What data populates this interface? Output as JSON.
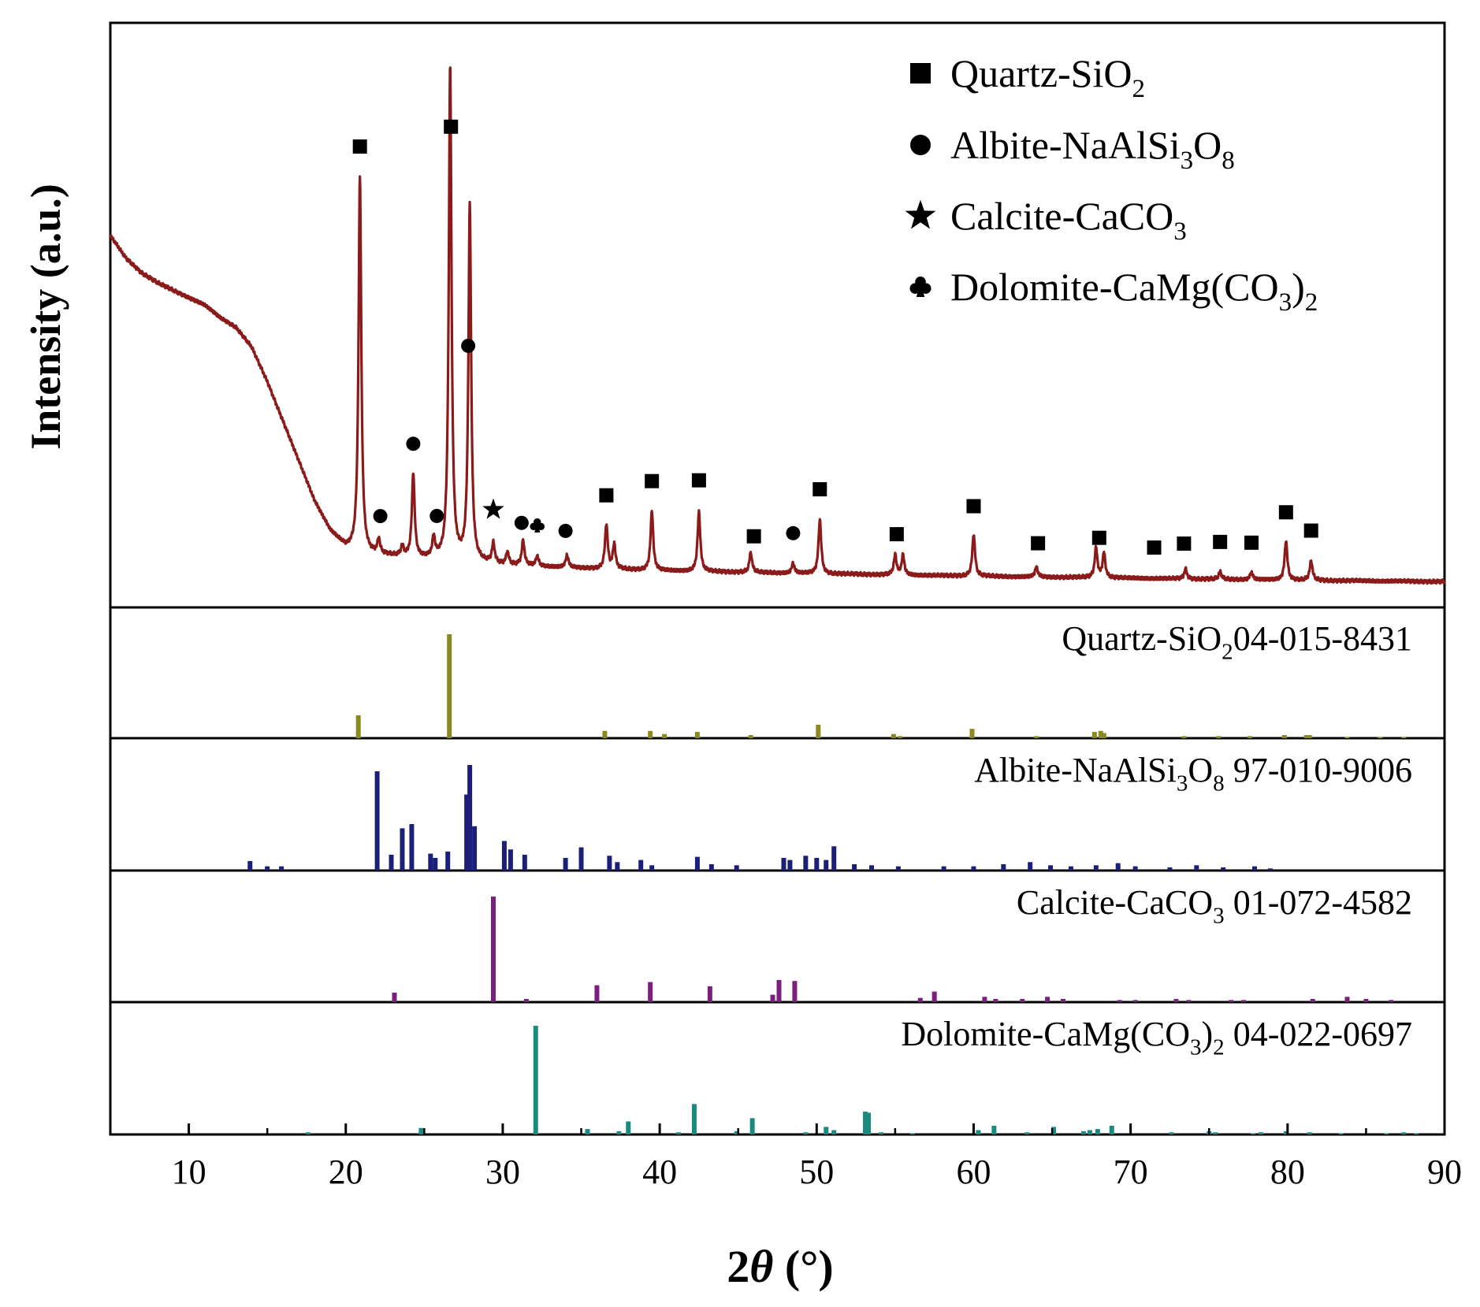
{
  "chart_data": {
    "type": "line",
    "xlabel": "2θ (°)",
    "ylabel": "Intensity (a.u.)",
    "xlim": [
      5,
      90
    ],
    "x_ticks": [
      10,
      20,
      30,
      40,
      50,
      60,
      70,
      80,
      90
    ],
    "grid": false,
    "legend_position": "top-right",
    "colors": {
      "xrd_pattern": "#8b1a1a",
      "quartz_ref": "#8a8a1e",
      "albite_ref": "#1c1f7a",
      "calcite_ref": "#7a1f7f",
      "dolomite_ref": "#1a8a80"
    },
    "legend": [
      {
        "phase": "quartz",
        "marker": "square",
        "symbol": "■",
        "prefix": "Quartz-SiO",
        "subs": [
          [
            "2",
            ""
          ]
        ]
      },
      {
        "phase": "albite",
        "marker": "circle",
        "symbol": "●",
        "prefix": "Albite-NaAlSi",
        "subs": [
          [
            "3",
            "O"
          ],
          [
            "8",
            ""
          ]
        ]
      },
      {
        "phase": "calcite",
        "marker": "star",
        "symbol": "★",
        "prefix": "Calcite-CaCO",
        "subs": [
          [
            "3",
            ""
          ]
        ]
      },
      {
        "phase": "dolomite",
        "marker": "club",
        "symbol": "♣",
        "prefix": "Dolomite-CaMg(CO",
        "subs": [
          [
            "3",
            ")"
          ],
          [
            "2",
            ""
          ]
        ]
      }
    ],
    "xrd_pattern": {
      "background": [
        [
          5,
          0.705
        ],
        [
          6,
          0.66
        ],
        [
          7,
          0.63
        ],
        [
          8,
          0.61
        ],
        [
          9,
          0.595
        ],
        [
          10,
          0.58
        ],
        [
          11,
          0.565
        ],
        [
          12,
          0.54
        ],
        [
          13,
          0.52
        ],
        [
          14,
          0.48
        ],
        [
          15,
          0.41
        ],
        [
          16,
          0.33
        ],
        [
          17,
          0.25
        ],
        [
          18,
          0.17
        ],
        [
          19,
          0.11
        ],
        [
          20,
          0.075
        ],
        [
          21,
          0.065
        ],
        [
          22,
          0.06
        ],
        [
          24,
          0.055
        ],
        [
          26,
          0.05
        ],
        [
          28,
          0.045
        ],
        [
          30,
          0.04
        ],
        [
          35,
          0.033
        ],
        [
          40,
          0.028
        ],
        [
          50,
          0.022
        ],
        [
          60,
          0.017
        ],
        [
          70,
          0.013
        ],
        [
          80,
          0.009
        ],
        [
          90,
          0.006
        ]
      ],
      "peaks": [
        {
          "two_theta": 20.9,
          "intensity": 0.76,
          "phase": "quartz"
        },
        {
          "two_theta": 22.1,
          "intensity": 0.03,
          "phase": "albite"
        },
        {
          "two_theta": 23.6,
          "intensity": 0.02,
          "phase": "albite"
        },
        {
          "two_theta": 24.3,
          "intensity": 0.17,
          "phase": "albite"
        },
        {
          "two_theta": 25.6,
          "intensity": 0.04,
          "phase": "albite"
        },
        {
          "two_theta": 26.65,
          "intensity": 1.0,
          "phase": "quartz"
        },
        {
          "two_theta": 27.9,
          "intensity": 0.72,
          "phase": "albite"
        },
        {
          "two_theta": 29.4,
          "intensity": 0.04,
          "phase": "calcite"
        },
        {
          "two_theta": 30.3,
          "intensity": 0.025,
          "phase": "albite"
        },
        {
          "two_theta": 31.3,
          "intensity": 0.05,
          "phase": "albite"
        },
        {
          "two_theta": 32.2,
          "intensity": 0.02,
          "phase": "dolomite"
        },
        {
          "two_theta": 34.1,
          "intensity": 0.025,
          "phase": "albite"
        },
        {
          "two_theta": 36.6,
          "intensity": 0.09,
          "phase": "quartz"
        },
        {
          "two_theta": 37.1,
          "intensity": 0.05,
          "phase": "quartz"
        },
        {
          "two_theta": 39.5,
          "intensity": 0.12,
          "phase": "quartz"
        },
        {
          "two_theta": 42.5,
          "intensity": 0.12,
          "phase": "quartz"
        },
        {
          "two_theta": 45.8,
          "intensity": 0.04,
          "phase": "quartz"
        },
        {
          "two_theta": 48.5,
          "intensity": 0.02,
          "phase": "albite"
        },
        {
          "two_theta": 50.2,
          "intensity": 0.11,
          "phase": "quartz"
        },
        {
          "two_theta": 55.0,
          "intensity": 0.04,
          "phase": "quartz"
        },
        {
          "two_theta": 55.5,
          "intensity": 0.04,
          "phase": "quartz"
        },
        {
          "two_theta": 60.0,
          "intensity": 0.085,
          "phase": "quartz"
        },
        {
          "two_theta": 64.0,
          "intensity": 0.02,
          "phase": "quartz"
        },
        {
          "two_theta": 67.8,
          "intensity": 0.06,
          "phase": "quartz"
        },
        {
          "two_theta": 68.3,
          "intensity": 0.05,
          "phase": "quartz"
        },
        {
          "two_theta": 73.5,
          "intensity": 0.02,
          "phase": "quartz"
        },
        {
          "two_theta": 75.7,
          "intensity": 0.015,
          "phase": "quartz"
        },
        {
          "two_theta": 77.7,
          "intensity": 0.015,
          "phase": "quartz"
        },
        {
          "two_theta": 79.9,
          "intensity": 0.08,
          "phase": "quartz"
        },
        {
          "two_theta": 81.5,
          "intensity": 0.04,
          "phase": "quartz"
        }
      ],
      "markers": [
        {
          "two_theta": 20.9,
          "phase": "quartz"
        },
        {
          "two_theta": 22.2,
          "phase": "albite"
        },
        {
          "two_theta": 24.3,
          "phase": "albite"
        },
        {
          "two_theta": 25.8,
          "phase": "albite"
        },
        {
          "two_theta": 26.7,
          "phase": "quartz"
        },
        {
          "two_theta": 27.8,
          "phase": "albite"
        },
        {
          "two_theta": 29.4,
          "phase": "calcite"
        },
        {
          "two_theta": 31.2,
          "phase": "albite"
        },
        {
          "two_theta": 32.2,
          "phase": "dolomite"
        },
        {
          "two_theta": 34.0,
          "phase": "albite"
        },
        {
          "two_theta": 36.6,
          "phase": "quartz"
        },
        {
          "two_theta": 39.5,
          "phase": "quartz"
        },
        {
          "two_theta": 42.5,
          "phase": "quartz"
        },
        {
          "two_theta": 46.0,
          "phase": "quartz"
        },
        {
          "two_theta": 48.5,
          "phase": "albite"
        },
        {
          "two_theta": 50.2,
          "phase": "quartz"
        },
        {
          "two_theta": 55.1,
          "phase": "quartz"
        },
        {
          "two_theta": 60.0,
          "phase": "quartz"
        },
        {
          "two_theta": 64.1,
          "phase": "quartz"
        },
        {
          "two_theta": 68.0,
          "phase": "quartz"
        },
        {
          "two_theta": 71.5,
          "phase": "quartz"
        },
        {
          "two_theta": 73.4,
          "phase": "quartz"
        },
        {
          "two_theta": 75.7,
          "phase": "quartz"
        },
        {
          "two_theta": 77.7,
          "phase": "quartz"
        },
        {
          "two_theta": 79.9,
          "phase": "quartz"
        },
        {
          "two_theta": 81.5,
          "phase": "quartz"
        }
      ]
    },
    "reference_patterns": [
      {
        "phase": "quartz",
        "prefix": "Quartz-SiO",
        "subs": [
          [
            "2",
            ""
          ]
        ],
        "card": "04-015-8431",
        "sticks": [
          [
            20.8,
            0.22
          ],
          [
            26.6,
            1.0
          ],
          [
            36.5,
            0.07
          ],
          [
            39.4,
            0.07
          ],
          [
            40.3,
            0.04
          ],
          [
            42.4,
            0.06
          ],
          [
            45.8,
            0.03
          ],
          [
            50.1,
            0.13
          ],
          [
            54.9,
            0.04
          ],
          [
            55.3,
            0.02
          ],
          [
            59.9,
            0.09
          ],
          [
            64.0,
            0.02
          ],
          [
            67.7,
            0.06
          ],
          [
            68.1,
            0.07
          ],
          [
            68.3,
            0.05
          ],
          [
            73.4,
            0.02
          ],
          [
            75.6,
            0.02
          ],
          [
            77.6,
            0.02
          ],
          [
            79.8,
            0.03
          ],
          [
            81.2,
            0.03
          ],
          [
            81.4,
            0.03
          ],
          [
            83.8,
            0.01
          ],
          [
            85.9,
            0.01
          ],
          [
            87.4,
            0.01
          ]
        ]
      },
      {
        "phase": "albite",
        "prefix": "Albite-NaAlSi",
        "subs": [
          [
            "3",
            "O"
          ],
          [
            "8",
            " "
          ]
        ],
        "card": "97-010-9006",
        "sticks": [
          [
            13.9,
            0.09
          ],
          [
            15.0,
            0.04
          ],
          [
            15.9,
            0.04
          ],
          [
            22.0,
            0.94
          ],
          [
            22.9,
            0.15
          ],
          [
            23.6,
            0.4
          ],
          [
            24.2,
            0.44
          ],
          [
            25.4,
            0.16
          ],
          [
            25.7,
            0.12
          ],
          [
            26.5,
            0.18
          ],
          [
            27.7,
            0.72
          ],
          [
            27.9,
            1.0
          ],
          [
            28.2,
            0.42
          ],
          [
            30.1,
            0.28
          ],
          [
            30.5,
            0.2
          ],
          [
            31.4,
            0.15
          ],
          [
            34.0,
            0.12
          ],
          [
            35.0,
            0.22
          ],
          [
            36.8,
            0.14
          ],
          [
            37.3,
            0.08
          ],
          [
            38.8,
            0.1
          ],
          [
            39.5,
            0.05
          ],
          [
            42.4,
            0.13
          ],
          [
            43.3,
            0.06
          ],
          [
            44.9,
            0.05
          ],
          [
            47.9,
            0.12
          ],
          [
            48.3,
            0.1
          ],
          [
            49.3,
            0.14
          ],
          [
            50.0,
            0.12
          ],
          [
            50.6,
            0.1
          ],
          [
            51.1,
            0.23
          ],
          [
            52.4,
            0.06
          ],
          [
            53.5,
            0.05
          ],
          [
            55.2,
            0.04
          ],
          [
            58.1,
            0.04
          ],
          [
            60.0,
            0.04
          ],
          [
            61.9,
            0.06
          ],
          [
            63.6,
            0.08
          ],
          [
            64.9,
            0.05
          ],
          [
            66.2,
            0.04
          ],
          [
            67.8,
            0.05
          ],
          [
            69.2,
            0.07
          ],
          [
            70.3,
            0.04
          ],
          [
            72.5,
            0.03
          ],
          [
            74.2,
            0.05
          ],
          [
            75.9,
            0.03
          ],
          [
            77.9,
            0.04
          ],
          [
            78.9,
            0.02
          ]
        ]
      },
      {
        "phase": "calcite",
        "prefix": "Calcite-CaCO",
        "subs": [
          [
            "3",
            " "
          ]
        ],
        "card": "01-072-4582",
        "sticks": [
          [
            23.1,
            0.09
          ],
          [
            29.4,
            1.0
          ],
          [
            31.5,
            0.03
          ],
          [
            36.0,
            0.16
          ],
          [
            39.4,
            0.19
          ],
          [
            43.2,
            0.15
          ],
          [
            47.2,
            0.07
          ],
          [
            47.6,
            0.21
          ],
          [
            48.6,
            0.2
          ],
          [
            56.6,
            0.04
          ],
          [
            57.5,
            0.1
          ],
          [
            60.7,
            0.05
          ],
          [
            61.4,
            0.03
          ],
          [
            63.1,
            0.03
          ],
          [
            64.7,
            0.05
          ],
          [
            65.7,
            0.03
          ],
          [
            69.3,
            0.02
          ],
          [
            70.3,
            0.02
          ],
          [
            72.9,
            0.03
          ],
          [
            73.7,
            0.02
          ],
          [
            76.4,
            0.02
          ],
          [
            77.2,
            0.02
          ],
          [
            81.6,
            0.03
          ],
          [
            83.8,
            0.05
          ],
          [
            85.0,
            0.03
          ],
          [
            86.6,
            0.02
          ]
        ]
      },
      {
        "phase": "dolomite",
        "prefix": "Dolomite-CaMg(CO",
        "subs": [
          [
            "3",
            ")"
          ],
          [
            "2",
            "  "
          ]
        ],
        "card": "04-022-0697",
        "sticks": [
          [
            17.6,
            0.02
          ],
          [
            24.8,
            0.06
          ],
          [
            32.1,
            1.0
          ],
          [
            35.4,
            0.05
          ],
          [
            37.4,
            0.03
          ],
          [
            38.0,
            0.12
          ],
          [
            41.2,
            0.02
          ],
          [
            42.2,
            0.28
          ],
          [
            44.9,
            0.03
          ],
          [
            45.9,
            0.15
          ],
          [
            49.3,
            0.02
          ],
          [
            50.6,
            0.07
          ],
          [
            51.1,
            0.04
          ],
          [
            53.1,
            0.21
          ],
          [
            53.3,
            0.2
          ],
          [
            54.1,
            0.02
          ],
          [
            56.1,
            0.01
          ],
          [
            60.3,
            0.04
          ],
          [
            61.3,
            0.08
          ],
          [
            63.4,
            0.02
          ],
          [
            65.1,
            0.07
          ],
          [
            67.0,
            0.03
          ],
          [
            67.4,
            0.04
          ],
          [
            67.9,
            0.05
          ],
          [
            68.8,
            0.08
          ],
          [
            72.6,
            0.02
          ],
          [
            75.0,
            0.03
          ],
          [
            75.4,
            0.02
          ],
          [
            77.8,
            0.01
          ],
          [
            78.3,
            0.02
          ],
          [
            79.9,
            0.03
          ],
          [
            81.4,
            0.02
          ],
          [
            83.4,
            0.01
          ],
          [
            86.3,
            0.01
          ],
          [
            87.4,
            0.02
          ],
          [
            88.2,
            0.01
          ]
        ]
      }
    ]
  }
}
